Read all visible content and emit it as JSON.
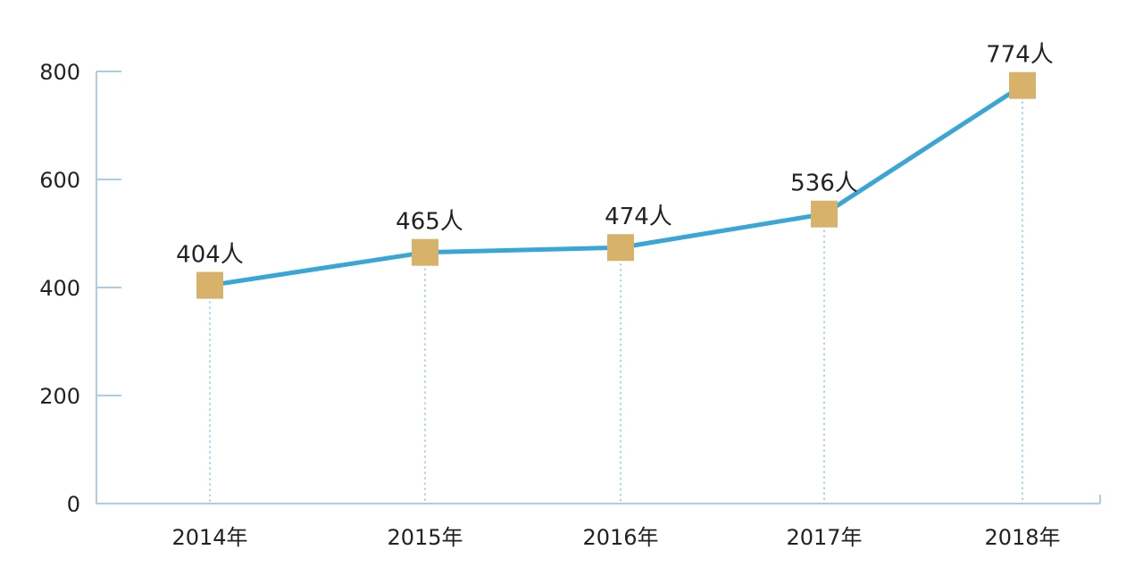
{
  "chart_data": {
    "type": "line",
    "title": "",
    "xlabel": "",
    "ylabel": "",
    "categories": [
      "2014年",
      "2015年",
      "2016年",
      "2017年",
      "2018年"
    ],
    "series": [
      {
        "values": [
          404,
          465,
          474,
          536,
          774
        ],
        "data_labels": [
          "404人",
          "465人",
          "474人",
          "536人",
          "774人"
        ]
      }
    ],
    "ylim": [
      0,
      800
    ],
    "yticks": [
      0,
      200,
      400,
      600,
      800
    ],
    "grid": false,
    "legend": "none",
    "colors": {
      "line": "#3aa6d6",
      "marker": "#d8b26a",
      "axis": "#a9cfe6",
      "dropline": "#7ec0e6"
    }
  }
}
